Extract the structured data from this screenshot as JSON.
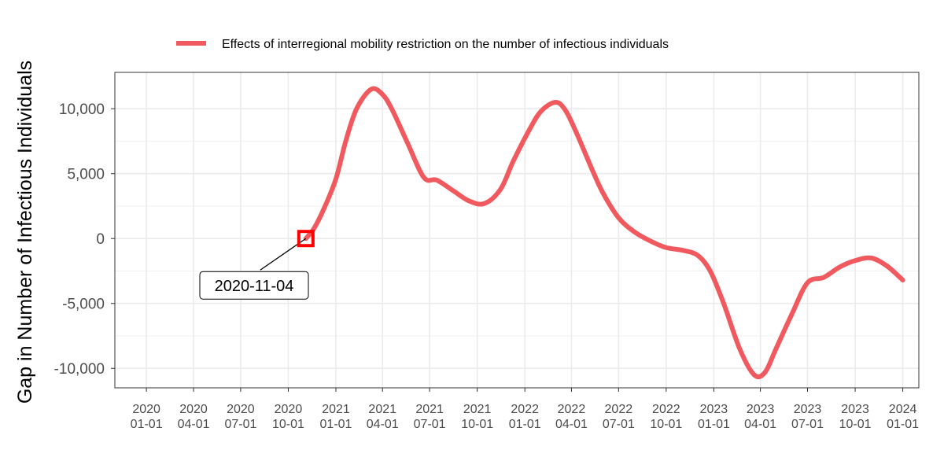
{
  "chart_data": {
    "type": "line",
    "ylabel": "Gap in Number of Infectious Individuals",
    "xlabel": "",
    "xlim": [
      "2019-11-01",
      "2024-02-01"
    ],
    "ylim": [
      -11500,
      12800
    ],
    "x_ticks": [
      "2020-01-01",
      "2020-04-01",
      "2020-07-01",
      "2020-10-01",
      "2021-01-01",
      "2021-04-01",
      "2021-07-01",
      "2021-10-01",
      "2022-01-01",
      "2022-04-01",
      "2022-07-01",
      "2022-10-01",
      "2023-01-01",
      "2023-04-01",
      "2023-07-01",
      "2023-10-01",
      "2024-01-01"
    ],
    "x_tick_labels": [
      [
        "2020",
        "01-01"
      ],
      [
        "2020",
        "04-01"
      ],
      [
        "2020",
        "07-01"
      ],
      [
        "2020",
        "10-01"
      ],
      [
        "2021",
        "01-01"
      ],
      [
        "2021",
        "04-01"
      ],
      [
        "2021",
        "07-01"
      ],
      [
        "2021",
        "10-01"
      ],
      [
        "2022",
        "01-01"
      ],
      [
        "2022",
        "04-01"
      ],
      [
        "2022",
        "07-01"
      ],
      [
        "2022",
        "10-01"
      ],
      [
        "2023",
        "01-01"
      ],
      [
        "2023",
        "04-01"
      ],
      [
        "2023",
        "07-01"
      ],
      [
        "2023",
        "10-01"
      ],
      [
        "2024",
        "01-01"
      ]
    ],
    "y_ticks": [
      -10000,
      -5000,
      0,
      5000,
      10000
    ],
    "y_tick_labels": [
      "-10,000",
      "-5,000",
      "0",
      "5,000",
      "10,000"
    ],
    "grid": true,
    "legend_position": "top",
    "series": [
      {
        "name": "Effects of interregional mobility restriction on the number of infectious individuals",
        "color": "#F0595D",
        "points": [
          [
            "2020-11-04",
            0
          ],
          [
            "2020-11-20",
            800
          ],
          [
            "2020-12-10",
            2400
          ],
          [
            "2021-01-01",
            4600
          ],
          [
            "2021-01-20",
            7500
          ],
          [
            "2021-02-10",
            10000
          ],
          [
            "2021-03-10",
            11500
          ],
          [
            "2021-04-01",
            11100
          ],
          [
            "2021-04-20",
            9900
          ],
          [
            "2021-05-20",
            7300
          ],
          [
            "2021-06-20",
            4700
          ],
          [
            "2021-07-15",
            4500
          ],
          [
            "2021-08-15",
            3700
          ],
          [
            "2021-09-15",
            2900
          ],
          [
            "2021-10-15",
            2700
          ],
          [
            "2021-11-15",
            3800
          ],
          [
            "2021-12-10",
            6000
          ],
          [
            "2022-01-10",
            8400
          ],
          [
            "2022-02-01",
            9800
          ],
          [
            "2022-03-01",
            10500
          ],
          [
            "2022-03-20",
            9900
          ],
          [
            "2022-04-10",
            8200
          ],
          [
            "2022-05-10",
            5400
          ],
          [
            "2022-06-01",
            3500
          ],
          [
            "2022-07-01",
            1600
          ],
          [
            "2022-08-01",
            500
          ],
          [
            "2022-09-01",
            -200
          ],
          [
            "2022-10-01",
            -700
          ],
          [
            "2022-11-01",
            -900
          ],
          [
            "2022-12-01",
            -1300
          ],
          [
            "2022-12-25",
            -2500
          ],
          [
            "2023-01-20",
            -5000
          ],
          [
            "2023-02-20",
            -8500
          ],
          [
            "2023-03-20",
            -10500
          ],
          [
            "2023-04-10",
            -10300
          ],
          [
            "2023-05-01",
            -8500
          ],
          [
            "2023-06-01",
            -5800
          ],
          [
            "2023-07-01",
            -3400
          ],
          [
            "2023-08-01",
            -3000
          ],
          [
            "2023-09-01",
            -2200
          ],
          [
            "2023-10-01",
            -1700
          ],
          [
            "2023-11-01",
            -1500
          ],
          [
            "2023-12-01",
            -2100
          ],
          [
            "2024-01-01",
            -3200
          ]
        ]
      }
    ],
    "annotations": [
      {
        "x": "2020-11-04",
        "y": 0,
        "label": "2020-11-04",
        "marker_color": "#FF0000"
      }
    ]
  }
}
